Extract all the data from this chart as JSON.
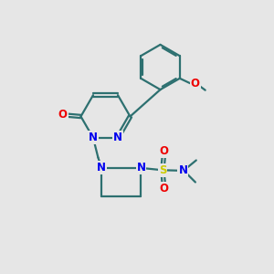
{
  "background_color": "#e6e6e6",
  "bond_color": "#2d7070",
  "n_color": "#0000ee",
  "o_color": "#ee0000",
  "s_color": "#cccc00",
  "bond_width": 1.6,
  "font_size_atom": 8.5,
  "fig_size": [
    3.0,
    3.0
  ],
  "dpi": 100,
  "xlim": [
    0,
    10
  ],
  "ylim": [
    0,
    10
  ]
}
